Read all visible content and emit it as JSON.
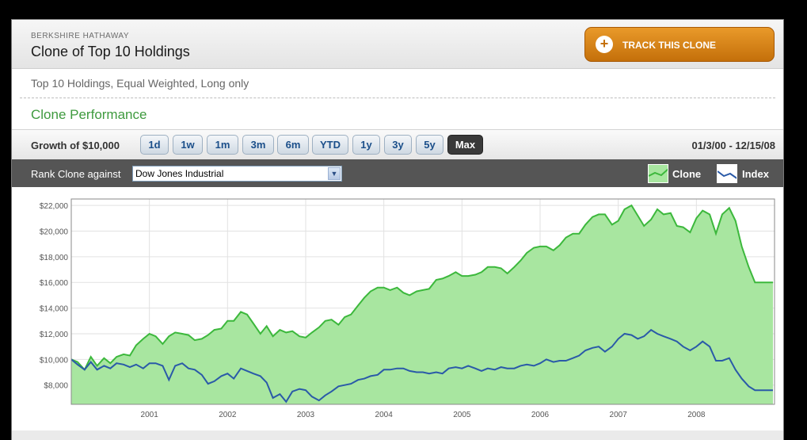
{
  "header": {
    "company": "BERKSHIRE HATHAWAY",
    "title": "Clone of Top 10 Holdings",
    "track_button": "TRACK THIS CLONE"
  },
  "subtitle": "Top 10 Holdings, Equal Weighted, Long only",
  "section_title": "Clone Performance",
  "range_bar": {
    "label": "Growth of $10,000",
    "buttons": [
      "1d",
      "1w",
      "1m",
      "3m",
      "6m",
      "YTD",
      "1y",
      "3y",
      "5y",
      "Max"
    ],
    "active": "Max",
    "date_range": "01/3/00 - 12/15/08"
  },
  "rank_bar": {
    "label": "Rank Clone against",
    "selected": "Dow Jones Industrial",
    "legend": [
      "Clone",
      "Index"
    ]
  },
  "colors": {
    "clone_line": "#3cb83c",
    "clone_fill": "#a8e6a0",
    "index_line": "#2a5aa8",
    "accent_button": "#d9881a"
  },
  "chart_data": {
    "type": "area",
    "ylim": [
      6500,
      22500
    ],
    "xlim": [
      2000.0,
      2009.0
    ],
    "y_ticks": [
      "$8,000",
      "$10,000",
      "$12,000",
      "$14,000",
      "$16,000",
      "$18,000",
      "$20,000",
      "$22,000"
    ],
    "y_tick_values": [
      8000,
      10000,
      12000,
      14000,
      16000,
      18000,
      20000,
      22000
    ],
    "x_ticks": [
      "2001",
      "2002",
      "2003",
      "2004",
      "2005",
      "2006",
      "2007",
      "2008"
    ],
    "x_tick_values": [
      2001,
      2002,
      2003,
      2004,
      2005,
      2006,
      2007,
      2008
    ],
    "grid": true,
    "series": [
      {
        "name": "Clone",
        "x": [
          2000.0,
          2000.08,
          2000.17,
          2000.25,
          2000.33,
          2000.42,
          2000.5,
          2000.58,
          2000.67,
          2000.75,
          2000.83,
          2000.92,
          2001.0,
          2001.08,
          2001.17,
          2001.25,
          2001.33,
          2001.42,
          2001.5,
          2001.58,
          2001.67,
          2001.75,
          2001.83,
          2001.92,
          2002.0,
          2002.08,
          2002.17,
          2002.25,
          2002.33,
          2002.42,
          2002.5,
          2002.58,
          2002.67,
          2002.75,
          2002.83,
          2002.92,
          2003.0,
          2003.08,
          2003.17,
          2003.25,
          2003.33,
          2003.42,
          2003.5,
          2003.58,
          2003.67,
          2003.75,
          2003.83,
          2003.92,
          2004.0,
          2004.08,
          2004.17,
          2004.25,
          2004.33,
          2004.42,
          2004.5,
          2004.58,
          2004.67,
          2004.75,
          2004.83,
          2004.92,
          2005.0,
          2005.08,
          2005.17,
          2005.25,
          2005.33,
          2005.42,
          2005.5,
          2005.58,
          2005.67,
          2005.75,
          2005.83,
          2005.92,
          2006.0,
          2006.08,
          2006.17,
          2006.25,
          2006.33,
          2006.42,
          2006.5,
          2006.58,
          2006.67,
          2006.75,
          2006.83,
          2006.92,
          2007.0,
          2007.08,
          2007.17,
          2007.25,
          2007.33,
          2007.42,
          2007.5,
          2007.58,
          2007.67,
          2007.75,
          2007.83,
          2007.92,
          2008.0,
          2008.08,
          2008.17,
          2008.25,
          2008.33,
          2008.42,
          2008.5,
          2008.58,
          2008.67,
          2008.75,
          2008.83,
          2008.92,
          2008.98
        ],
        "values": [
          10000,
          9800,
          9200,
          10200,
          9500,
          10100,
          9700,
          10200,
          10400,
          10300,
          11100,
          11600,
          12000,
          11800,
          11200,
          11800,
          12100,
          12000,
          11900,
          11500,
          11600,
          11900,
          12300,
          12400,
          13000,
          13000,
          13700,
          13500,
          12800,
          12000,
          12600,
          11800,
          12300,
          12100,
          12200,
          11800,
          11700,
          12100,
          12500,
          13000,
          13100,
          12700,
          13300,
          13500,
          14200,
          14800,
          15300,
          15600,
          15600,
          15400,
          15600,
          15200,
          15000,
          15300,
          15400,
          15500,
          16200,
          16300,
          16500,
          16800,
          16500,
          16500,
          16600,
          16800,
          17200,
          17200,
          17100,
          16700,
          17200,
          17700,
          18300,
          18700,
          18800,
          18800,
          18500,
          18900,
          19500,
          19800,
          19800,
          20500,
          21100,
          21300,
          21300,
          20500,
          20800,
          21700,
          22000,
          21200,
          20400,
          20900,
          21700,
          21300,
          21400,
          20400,
          20300,
          19900,
          21000,
          21600,
          21300,
          19800,
          21300,
          21800,
          20800,
          18800,
          17200,
          16000,
          16000,
          16000,
          16000
        ]
      },
      {
        "name": "Index",
        "x": [
          2000.0,
          2000.08,
          2000.17,
          2000.25,
          2000.33,
          2000.42,
          2000.5,
          2000.58,
          2000.67,
          2000.75,
          2000.83,
          2000.92,
          2001.0,
          2001.08,
          2001.17,
          2001.25,
          2001.33,
          2001.42,
          2001.5,
          2001.58,
          2001.67,
          2001.75,
          2001.83,
          2001.92,
          2002.0,
          2002.08,
          2002.17,
          2002.25,
          2002.33,
          2002.42,
          2002.5,
          2002.58,
          2002.67,
          2002.75,
          2002.83,
          2002.92,
          2003.0,
          2003.08,
          2003.17,
          2003.25,
          2003.33,
          2003.42,
          2003.5,
          2003.58,
          2003.67,
          2003.75,
          2003.83,
          2003.92,
          2004.0,
          2004.08,
          2004.17,
          2004.25,
          2004.33,
          2004.42,
          2004.5,
          2004.58,
          2004.67,
          2004.75,
          2004.83,
          2004.92,
          2005.0,
          2005.08,
          2005.17,
          2005.25,
          2005.33,
          2005.42,
          2005.5,
          2005.58,
          2005.67,
          2005.75,
          2005.83,
          2005.92,
          2006.0,
          2006.08,
          2006.17,
          2006.25,
          2006.33,
          2006.42,
          2006.5,
          2006.58,
          2006.67,
          2006.75,
          2006.83,
          2006.92,
          2007.0,
          2007.08,
          2007.17,
          2007.25,
          2007.33,
          2007.42,
          2007.5,
          2007.58,
          2007.67,
          2007.75,
          2007.83,
          2007.92,
          2008.0,
          2008.08,
          2008.17,
          2008.25,
          2008.33,
          2008.42,
          2008.5,
          2008.58,
          2008.67,
          2008.75,
          2008.83,
          2008.92,
          2008.98
        ],
        "values": [
          10000,
          9600,
          9200,
          9800,
          9200,
          9500,
          9300,
          9700,
          9600,
          9400,
          9600,
          9300,
          9700,
          9700,
          9500,
          8400,
          9500,
          9700,
          9300,
          9200,
          8800,
          8100,
          8300,
          8700,
          8900,
          8500,
          9300,
          9100,
          8900,
          8700,
          8200,
          7000,
          7300,
          6700,
          7500,
          7700,
          7600,
          7100,
          6800,
          7200,
          7500,
          7900,
          8000,
          8100,
          8400,
          8500,
          8700,
          8800,
          9200,
          9200,
          9300,
          9300,
          9100,
          9000,
          9000,
          8900,
          9000,
          8900,
          9300,
          9400,
          9300,
          9500,
          9300,
          9100,
          9300,
          9200,
          9400,
          9300,
          9300,
          9500,
          9600,
          9500,
          9700,
          10000,
          9800,
          9900,
          9900,
          10100,
          10300,
          10700,
          10900,
          11000,
          10600,
          11000,
          11600,
          12000,
          11900,
          11600,
          11800,
          12300,
          12000,
          11800,
          11600,
          11400,
          11000,
          10700,
          11000,
          11400,
          11000,
          9900,
          9900,
          10100,
          9200,
          8500,
          7900,
          7600,
          7600,
          7600,
          7600
        ]
      }
    ]
  }
}
